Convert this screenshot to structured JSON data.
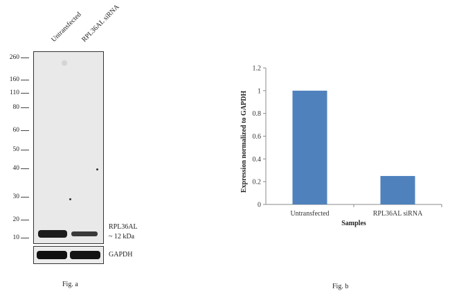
{
  "fig_a": {
    "lanes": [
      "Untransfected",
      "RPL36AL siRNA"
    ],
    "mw_markers": [
      "260",
      "160",
      "110",
      "80",
      "60",
      "50",
      "40",
      "30",
      "20",
      "10"
    ],
    "band_label": "RPL36AL",
    "band_size": "~ 12 kDa",
    "loading_label": "GAPDH",
    "caption": "Fig. a"
  },
  "fig_b": {
    "caption": "Fig. b",
    "chart_data": {
      "type": "bar",
      "categories": [
        "Untransfected",
        "RPL36AL siRNA"
      ],
      "values": [
        1.0,
        0.25
      ],
      "xlabel": "Samples",
      "ylabel": "Expression normalized to GAPDH",
      "ylim": [
        0,
        1.2
      ],
      "yticks": [
        0,
        0.2,
        0.4,
        0.6,
        0.8,
        1,
        1.2
      ],
      "ytick_labels": [
        "0",
        "0.2",
        "0.4",
        "0.6",
        "0.8",
        "1",
        "1.2"
      ],
      "bar_color": "#4f81bd",
      "grid": false
    }
  }
}
